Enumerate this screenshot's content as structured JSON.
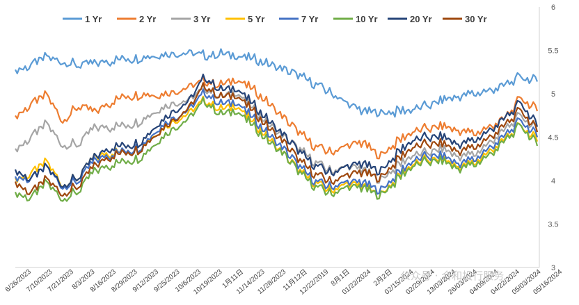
{
  "chart_data": {
    "type": "line",
    "title": "",
    "xlabel": "",
    "ylabel": "",
    "ylim": [
      3,
      6
    ],
    "y_axis_side": "right",
    "y_ticks": [
      "3",
      "3.5",
      "4",
      "4.5",
      "5",
      "5.5",
      "6"
    ],
    "grid": false,
    "legend_position": "top",
    "x_tick_labels": [
      "6/26/2023",
      "7/10/2023",
      "7/21/2023",
      "8/3/2023",
      "8/16/2023",
      "8/29/2023",
      "9/12/2023",
      "9/25/2023",
      "10/6/2023",
      "10/19/2023",
      "1月11日",
      "11/14/2023",
      "11/28/2023",
      "11月12日",
      "12/22/2019",
      "8月1日",
      "01/22/2024",
      "2月2日",
      "02/15/2024",
      "02/29/2024",
      "13/03/2024",
      "26/03/2024",
      "04/09/2024",
      "04/22/2024",
      "05/03/2024",
      "05/16/2024"
    ],
    "series": [
      {
        "name": "1 Yr",
        "color": "#5B9BD5",
        "values": [
          5.25,
          5.33,
          5.43,
          5.38,
          5.33,
          5.36,
          5.38,
          5.4,
          5.42,
          5.45,
          5.46,
          5.47,
          5.44,
          5.46,
          5.43,
          5.4,
          5.35,
          5.28,
          5.2,
          5.1,
          5.0,
          4.88,
          4.8,
          4.78,
          4.79,
          4.82,
          4.86,
          4.92,
          4.97,
          5.0,
          5.04,
          5.1,
          5.2,
          5.14
        ]
      },
      {
        "name": "2 Yr",
        "color": "#ED7D31",
        "values": [
          4.72,
          4.88,
          4.99,
          4.7,
          4.86,
          4.8,
          4.9,
          4.97,
          5.0,
          4.99,
          5.02,
          5.08,
          5.15,
          5.1,
          5.16,
          5.05,
          4.9,
          4.72,
          4.54,
          4.38,
          4.32,
          4.4,
          4.44,
          4.28,
          4.42,
          4.56,
          4.6,
          4.62,
          4.58,
          4.54,
          4.62,
          4.72,
          4.96,
          4.8
        ]
      },
      {
        "name": "3 Yr",
        "color": "#A5A5A5",
        "values": [
          4.34,
          4.5,
          4.66,
          4.42,
          4.42,
          4.62,
          4.62,
          4.63,
          4.7,
          4.82,
          4.89,
          4.93,
          5.07,
          4.96,
          5.01,
          4.83,
          4.66,
          4.5,
          4.35,
          4.2,
          4.1,
          4.16,
          4.13,
          4.0,
          4.14,
          4.29,
          4.32,
          4.36,
          4.28,
          4.3,
          4.44,
          4.59,
          4.76,
          4.56
        ]
      },
      {
        "name": "5 Yr",
        "color": "#FFC000",
        "values": [
          4.0,
          4.08,
          4.22,
          3.96,
          4.04,
          4.28,
          4.32,
          4.33,
          4.4,
          4.56,
          4.68,
          4.78,
          4.93,
          4.82,
          4.86,
          4.67,
          4.5,
          4.3,
          4.1,
          3.96,
          3.88,
          3.96,
          3.94,
          3.82,
          4.0,
          4.18,
          4.24,
          4.24,
          4.16,
          4.2,
          4.34,
          4.48,
          4.64,
          4.45
        ]
      },
      {
        "name": "7 Yr",
        "color": "#4472C4",
        "values": [
          4.02,
          4.02,
          4.16,
          3.94,
          4.0,
          4.24,
          4.3,
          4.34,
          4.4,
          4.6,
          4.72,
          4.82,
          5.02,
          4.88,
          4.9,
          4.72,
          4.54,
          4.36,
          4.15,
          3.98,
          3.92,
          3.98,
          3.98,
          3.88,
          4.04,
          4.22,
          4.28,
          4.28,
          4.2,
          4.24,
          4.38,
          4.52,
          4.7,
          4.5
        ]
      },
      {
        "name": "10 Yr",
        "color": "#70AD47",
        "values": [
          3.84,
          3.8,
          3.98,
          3.8,
          3.88,
          4.12,
          4.18,
          4.22,
          4.28,
          4.46,
          4.6,
          4.72,
          4.92,
          4.76,
          4.8,
          4.63,
          4.46,
          4.3,
          4.08,
          3.92,
          3.84,
          3.92,
          3.92,
          3.82,
          3.98,
          4.16,
          4.22,
          4.22,
          4.14,
          4.18,
          4.3,
          4.46,
          4.64,
          4.4
        ]
      },
      {
        "name": "20 Yr",
        "color": "#264478",
        "values": [
          4.1,
          4.02,
          4.16,
          3.96,
          4.04,
          4.28,
          4.38,
          4.4,
          4.46,
          4.66,
          4.8,
          4.92,
          5.2,
          5.04,
          5.06,
          4.88,
          4.7,
          4.52,
          4.32,
          4.16,
          4.08,
          4.16,
          4.2,
          4.1,
          4.28,
          4.46,
          4.5,
          4.5,
          4.42,
          4.46,
          4.58,
          4.72,
          4.9,
          4.62
        ]
      },
      {
        "name": "30 Yr",
        "color": "#9E480E",
        "values": [
          3.96,
          3.86,
          4.02,
          3.86,
          3.94,
          4.18,
          4.28,
          4.32,
          4.38,
          4.56,
          4.7,
          4.84,
          5.1,
          4.96,
          4.98,
          4.8,
          4.62,
          4.44,
          4.22,
          4.06,
          3.98,
          4.06,
          4.1,
          4.02,
          4.2,
          4.38,
          4.42,
          4.42,
          4.34,
          4.38,
          4.5,
          4.64,
          4.82,
          4.56
        ]
      }
    ]
  },
  "watermark": "公众号 · 合和投行服务"
}
